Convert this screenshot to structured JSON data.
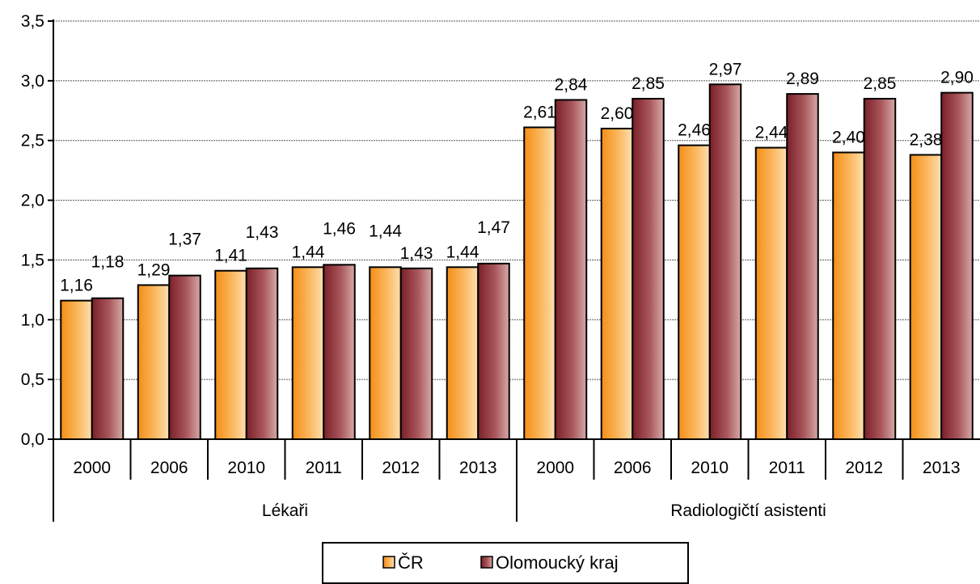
{
  "chart_data": {
    "type": "bar",
    "groups": [
      {
        "label": "Lékaři",
        "categories": [
          "2000",
          "2006",
          "2010",
          "2011",
          "2012",
          "2013"
        ]
      },
      {
        "label": "Radiologičtí asistenti",
        "categories": [
          "2000",
          "2006",
          "2010",
          "2011",
          "2012",
          "2013"
        ]
      }
    ],
    "series": [
      {
        "name": "ČR",
        "color": "#f7a12f",
        "values": [
          1.16,
          1.29,
          1.41,
          1.44,
          1.44,
          1.44,
          2.61,
          2.6,
          2.46,
          2.44,
          2.4,
          2.38
        ],
        "labels": [
          "1,16",
          "1,29",
          "1,41",
          "1,44",
          "1,44",
          "1,44",
          "2,61",
          "2,60",
          "2,46",
          "2,44",
          "2,40",
          "2,38"
        ]
      },
      {
        "name": "Olomoucký kraj",
        "color": "#8e2e35",
        "values": [
          1.18,
          1.37,
          1.43,
          1.46,
          1.43,
          1.47,
          2.84,
          2.85,
          2.97,
          2.89,
          2.85,
          2.9
        ],
        "labels": [
          "1,18",
          "1,37",
          "1,43",
          "1,46",
          "1,43",
          "1,47",
          "2,84",
          "2,85",
          "2,97",
          "2,89",
          "2,85",
          "2,90"
        ]
      }
    ],
    "ylim": [
      0,
      3.5
    ],
    "yticks": [
      "0,0",
      "0,5",
      "1,0",
      "1,5",
      "2,0",
      "2,5",
      "3,0",
      "3,5"
    ],
    "grid": true,
    "legend_position": "bottom-center"
  }
}
